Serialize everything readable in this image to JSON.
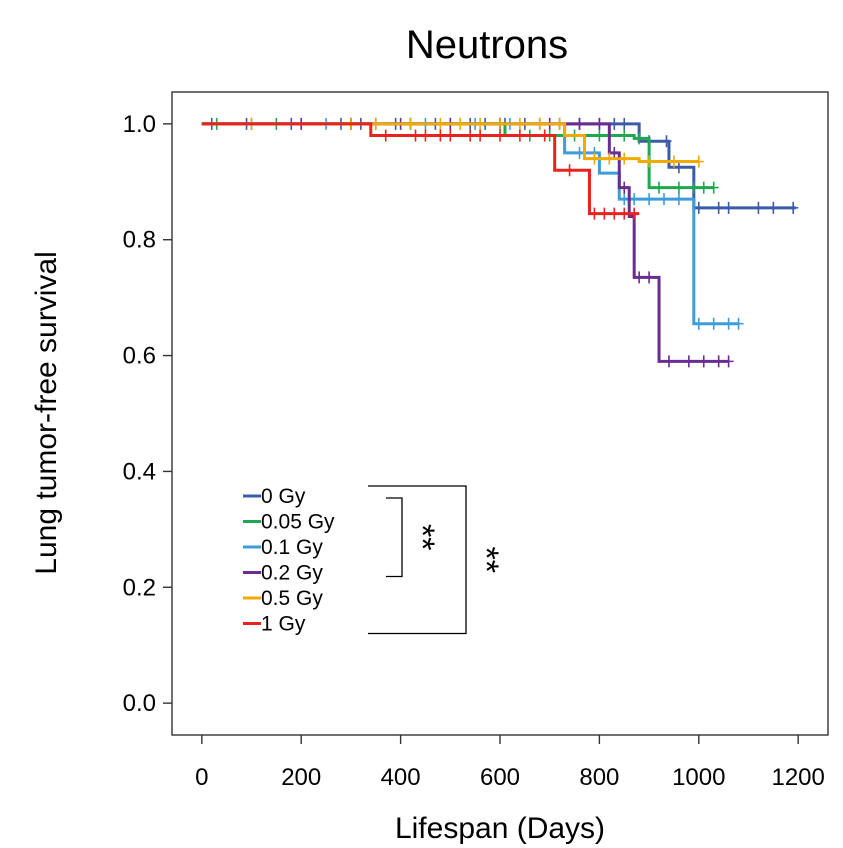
{
  "chart_data": {
    "type": "line",
    "title": "Neutrons",
    "xlabel": "Lifespan (Days)",
    "ylabel": "Lung tumor-free survival",
    "xlim": [
      -60,
      1260
    ],
    "ylim": [
      -0.055,
      1.055
    ],
    "xticks": [
      "0",
      "200",
      "400",
      "600",
      "800",
      "1000",
      "1200"
    ],
    "xtick_values": [
      0,
      200,
      400,
      600,
      800,
      1000,
      1200
    ],
    "yticks": [
      "0.0",
      "0.2",
      "0.4",
      "0.6",
      "0.8",
      "1.0"
    ],
    "ytick_values": [
      0.0,
      0.2,
      0.4,
      0.6,
      0.8,
      1.0
    ],
    "grid": false,
    "legend_position": "lower-left",
    "series": [
      {
        "name": "0 Gy",
        "color": "#3b5ba9",
        "steps": [
          [
            0,
            1.0
          ],
          [
            880,
            0.97
          ],
          [
            940,
            0.925
          ],
          [
            990,
            0.855
          ],
          [
            1195,
            0.855
          ]
        ],
        "censors": [
          20,
          90,
          180,
          280,
          320,
          350,
          390,
          420,
          470,
          500,
          540,
          570,
          610,
          650,
          680,
          720,
          760,
          800,
          830,
          850,
          900,
          935,
          960,
          1000,
          1040,
          1060,
          1120,
          1150,
          1190
        ]
      },
      {
        "name": "0.05 Gy",
        "color": "#1fa84f",
        "steps": [
          [
            0,
            1.0
          ],
          [
            610,
            0.98
          ],
          [
            870,
            0.975
          ],
          [
            900,
            0.89
          ],
          [
            1030,
            0.89
          ]
        ],
        "censors": [
          30,
          150,
          300,
          420,
          520,
          600,
          660,
          700,
          750,
          800,
          850,
          880,
          920,
          960,
          990,
          1010,
          1030
        ]
      },
      {
        "name": "0.1 Gy",
        "color": "#3d9ddb",
        "steps": [
          [
            0,
            1.0
          ],
          [
            730,
            0.95
          ],
          [
            800,
            0.915
          ],
          [
            840,
            0.87
          ],
          [
            980,
            0.87
          ],
          [
            990,
            0.655
          ],
          [
            1080,
            0.655
          ]
        ],
        "censors": [
          100,
          250,
          350,
          450,
          550,
          620,
          680,
          720,
          760,
          790,
          850,
          870,
          900,
          930,
          960,
          1000,
          1030,
          1060,
          1080
        ]
      },
      {
        "name": "0.2 Gy",
        "color": "#6a2c91",
        "steps": [
          [
            0,
            1.0
          ],
          [
            820,
            0.95
          ],
          [
            840,
            0.89
          ],
          [
            860,
            0.84
          ],
          [
            870,
            0.735
          ],
          [
            920,
            0.59
          ],
          [
            1060,
            0.59
          ]
        ],
        "censors": [
          200,
          300,
          400,
          500,
          600,
          700,
          760,
          800,
          830,
          850,
          880,
          900,
          940,
          980,
          1010,
          1040,
          1060
        ]
      },
      {
        "name": "0.5 Gy",
        "color": "#f2a900",
        "steps": [
          [
            0,
            1.0
          ],
          [
            730,
            0.98
          ],
          [
            770,
            0.94
          ],
          [
            880,
            0.935
          ],
          [
            1000,
            0.935
          ]
        ],
        "censors": [
          100,
          300,
          350,
          420,
          480,
          520,
          560,
          600,
          640,
          680,
          720,
          790,
          820,
          850,
          900,
          950,
          1000
        ]
      },
      {
        "name": "1 Gy",
        "color": "#e8231f",
        "steps": [
          [
            0,
            1.0
          ],
          [
            340,
            0.98
          ],
          [
            710,
            0.92
          ],
          [
            780,
            0.845
          ],
          [
            880,
            0.845
          ]
        ],
        "censors": [
          370,
          430,
          450,
          480,
          500,
          540,
          560,
          600,
          640,
          690,
          740,
          790,
          810,
          830,
          850,
          870
        ]
      }
    ],
    "significance": [
      {
        "label": "**",
        "between": [
          "0 Gy",
          "0.2 Gy"
        ]
      },
      {
        "label": "**",
        "between": [
          "0 Gy",
          "1 Gy"
        ]
      }
    ]
  }
}
